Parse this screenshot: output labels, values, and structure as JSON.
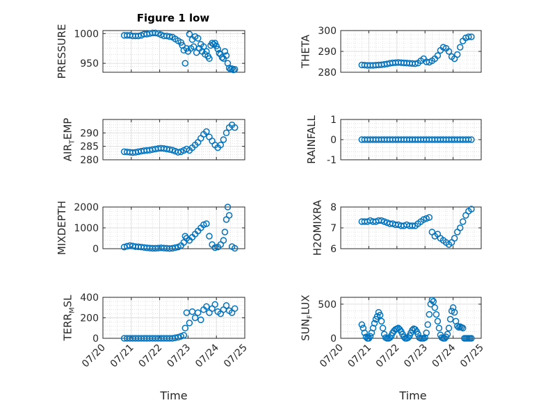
{
  "figure": {
    "title": "Figure 1 low",
    "xlabel": "Time",
    "date_ticks": [
      "07/20",
      "07/21",
      "07/22",
      "07/23",
      "07/24",
      "07/25"
    ]
  },
  "colors": {
    "marker": "#0072BD",
    "axis": "#262626",
    "grid": "#c8c8c8"
  },
  "chart_data": [
    {
      "type": "scatter",
      "ylabel": "PRESSURE",
      "title": "Figure 1 low",
      "xlim": [
        "07/20",
        "07/25"
      ],
      "ylim": [
        935,
        1005
      ],
      "yticks": [
        950,
        1000
      ],
      "grid": true,
      "minor_grid": true,
      "series": [
        {
          "x": [
            20.75,
            20.85,
            20.95,
            21.05,
            21.15,
            21.25,
            21.35,
            21.45,
            21.55,
            21.65,
            21.75,
            21.85,
            21.95,
            22.05,
            22.15,
            22.25,
            22.35,
            22.45,
            22.55,
            22.65,
            22.75,
            22.8,
            22.85,
            22.9,
            22.95,
            23.0,
            23.05,
            23.1,
            23.15,
            23.2,
            23.25,
            23.3,
            23.35,
            23.4,
            23.45,
            23.5,
            23.55,
            23.6,
            23.65,
            23.7,
            23.75,
            23.8,
            23.85,
            23.9,
            23.95,
            24.0,
            24.05,
            24.1,
            24.15,
            24.2,
            24.25,
            24.3,
            24.35,
            24.4,
            24.45,
            24.5,
            24.55,
            24.6,
            24.65
          ],
          "y": [
            997,
            997,
            997,
            996,
            996,
            996,
            997,
            999,
            999,
            1000,
            1001,
            1001,
            1000,
            998,
            996,
            996,
            995,
            994,
            991,
            988,
            985,
            980,
            972,
            950,
            975,
            970,
            999,
            975,
            990,
            978,
            995,
            968,
            992,
            975,
            982,
            970,
            978,
            965,
            970,
            962,
            958,
            980,
            984,
            982,
            984,
            979,
            974,
            967,
            965,
            960,
            958,
            970,
            963,
            950,
            942,
            940,
            941,
            939,
            940
          ]
        }
      ]
    },
    {
      "type": "scatter",
      "ylabel": "THETA",
      "xlim": [
        "07/20",
        "07/25"
      ],
      "ylim": [
        280,
        300
      ],
      "yticks": [
        280,
        290,
        300
      ],
      "grid": true,
      "minor_grid": true,
      "series": [
        {
          "x": [
            20.75,
            20.85,
            20.95,
            21.05,
            21.15,
            21.25,
            21.35,
            21.45,
            21.55,
            21.65,
            21.75,
            21.85,
            21.95,
            22.05,
            22.15,
            22.25,
            22.35,
            22.45,
            22.55,
            22.65,
            22.75,
            22.85,
            22.95,
            23.05,
            23.15,
            23.25,
            23.35,
            23.45,
            23.55,
            23.65,
            23.75,
            23.85,
            23.95,
            24.05,
            24.15,
            24.25,
            24.35,
            24.45,
            24.55,
            24.65
          ],
          "y": [
            283.5,
            283.4,
            283.3,
            283.3,
            283.3,
            283.4,
            283.5,
            283.6,
            283.8,
            284.0,
            284.3,
            284.5,
            284.6,
            284.7,
            284.6,
            284.5,
            284.4,
            284.3,
            284.2,
            284.1,
            284.4,
            285.5,
            286.5,
            285.0,
            284.8,
            285.5,
            286.5,
            288.0,
            290.5,
            292.0,
            291.5,
            290.0,
            287.5,
            286.5,
            288.5,
            292.0,
            295.0,
            296.5,
            297.0,
            297.0
          ]
        }
      ]
    },
    {
      "type": "scatter",
      "ylabel": "AIR_TEMP",
      "xlim": [
        "07/20",
        "07/25"
      ],
      "ylim": [
        280,
        295
      ],
      "yticks": [
        280,
        285,
        290
      ],
      "grid": true,
      "minor_grid": true,
      "series": [
        {
          "x": [
            20.75,
            20.85,
            20.95,
            21.05,
            21.15,
            21.25,
            21.35,
            21.45,
            21.55,
            21.65,
            21.75,
            21.85,
            21.95,
            22.05,
            22.15,
            22.25,
            22.35,
            22.45,
            22.55,
            22.65,
            22.75,
            22.85,
            22.95,
            23.05,
            23.15,
            23.25,
            23.35,
            23.45,
            23.55,
            23.65,
            23.75,
            23.85,
            23.95,
            24.05,
            24.15,
            24.25,
            24.35,
            24.45,
            24.55,
            24.65
          ],
          "y": [
            283.0,
            282.9,
            282.8,
            282.7,
            282.8,
            283.0,
            283.2,
            283.4,
            283.5,
            283.6,
            283.8,
            284.0,
            284.2,
            284.3,
            284.2,
            284.0,
            283.8,
            283.6,
            283.2,
            282.8,
            283.0,
            283.5,
            284.0,
            283.5,
            284.5,
            285.5,
            286.5,
            288.0,
            289.5,
            290.5,
            288.5,
            287.0,
            285.5,
            284.5,
            285.5,
            287.5,
            290.0,
            292.0,
            293.0,
            292.0
          ]
        }
      ]
    },
    {
      "type": "scatter",
      "ylabel": "RAINFALL",
      "xlim": [
        "07/20",
        "07/25"
      ],
      "ylim": [
        -1,
        1
      ],
      "yticks": [
        -1,
        0,
        1
      ],
      "grid": true,
      "minor_grid": true,
      "series": [
        {
          "x": [
            20.75,
            20.85,
            20.95,
            21.05,
            21.15,
            21.25,
            21.35,
            21.45,
            21.55,
            21.65,
            21.75,
            21.85,
            21.95,
            22.05,
            22.15,
            22.25,
            22.35,
            22.45,
            22.55,
            22.65,
            22.75,
            22.85,
            22.95,
            23.05,
            23.15,
            23.25,
            23.35,
            23.45,
            23.55,
            23.65,
            23.75,
            23.85,
            23.95,
            24.05,
            24.15,
            24.25,
            24.35,
            24.45,
            24.55,
            24.65
          ],
          "y": [
            0,
            0,
            0,
            0,
            0,
            0,
            0,
            0,
            0,
            0,
            0,
            0,
            0,
            0,
            0,
            0,
            0,
            0,
            0,
            0,
            0,
            0,
            0,
            0,
            0,
            0,
            0,
            0,
            0,
            0,
            0,
            0,
            0,
            0,
            0,
            0,
            0,
            0,
            0,
            0
          ]
        }
      ]
    },
    {
      "type": "scatter",
      "ylabel": "MIXDEPTH",
      "xlim": [
        "07/20",
        "07/25"
      ],
      "ylim": [
        0,
        2000
      ],
      "yticks": [
        0,
        1000,
        2000
      ],
      "grid": true,
      "minor_grid": true,
      "series": [
        {
          "x": [
            20.75,
            20.85,
            20.95,
            21.05,
            21.15,
            21.25,
            21.35,
            21.45,
            21.55,
            21.65,
            21.75,
            21.85,
            21.95,
            22.05,
            22.15,
            22.25,
            22.35,
            22.45,
            22.55,
            22.65,
            22.75,
            22.85,
            22.9,
            22.95,
            23.05,
            23.15,
            23.25,
            23.35,
            23.45,
            23.55,
            23.65,
            23.75,
            23.85,
            23.95,
            24.05,
            24.15,
            24.25,
            24.3,
            24.35,
            24.4,
            24.45,
            24.55,
            24.65
          ],
          "y": [
            80,
            120,
            150,
            130,
            100,
            90,
            80,
            60,
            40,
            30,
            20,
            20,
            30,
            40,
            30,
            20,
            10,
            20,
            50,
            80,
            150,
            300,
            600,
            500,
            400,
            550,
            700,
            850,
            1000,
            1150,
            1200,
            600,
            200,
            50,
            80,
            200,
            400,
            800,
            1400,
            2000,
            1600,
            100,
            20
          ]
        }
      ]
    },
    {
      "type": "scatter",
      "ylabel": "H2OMIXRA",
      "xlim": [
        "07/20",
        "07/25"
      ],
      "ylim": [
        6,
        8
      ],
      "yticks": [
        6,
        7,
        8
      ],
      "grid": true,
      "minor_grid": true,
      "series": [
        {
          "x": [
            20.75,
            20.85,
            20.95,
            21.05,
            21.15,
            21.25,
            21.35,
            21.45,
            21.55,
            21.65,
            21.75,
            21.85,
            21.95,
            22.05,
            22.15,
            22.25,
            22.35,
            22.45,
            22.55,
            22.65,
            22.75,
            22.85,
            22.95,
            23.05,
            23.15,
            23.25,
            23.35,
            23.45,
            23.55,
            23.65,
            23.75,
            23.85,
            23.95,
            24.05,
            24.15,
            24.25,
            24.35,
            24.45,
            24.55,
            24.65
          ],
          "y": [
            7.3,
            7.3,
            7.3,
            7.35,
            7.3,
            7.3,
            7.35,
            7.35,
            7.3,
            7.25,
            7.2,
            7.2,
            7.15,
            7.15,
            7.1,
            7.1,
            7.15,
            7.1,
            7.1,
            7.1,
            7.2,
            7.3,
            7.4,
            7.45,
            7.5,
            6.8,
            6.6,
            6.7,
            6.5,
            6.4,
            6.3,
            6.2,
            6.3,
            6.5,
            6.8,
            7.0,
            7.3,
            7.6,
            7.8,
            7.9
          ]
        }
      ]
    },
    {
      "type": "scatter",
      "ylabel": "TERR_MSL",
      "xlim": [
        "07/20",
        "07/25"
      ],
      "ylim": [
        0,
        400
      ],
      "yticks": [
        0,
        200,
        400
      ],
      "grid": true,
      "minor_grid": true,
      "series": [
        {
          "x": [
            20.75,
            20.85,
            20.95,
            21.05,
            21.15,
            21.25,
            21.35,
            21.45,
            21.55,
            21.65,
            21.75,
            21.85,
            21.95,
            22.05,
            22.15,
            22.25,
            22.35,
            22.45,
            22.55,
            22.65,
            22.75,
            22.85,
            22.9,
            22.95,
            23.05,
            23.15,
            23.25,
            23.35,
            23.45,
            23.55,
            23.65,
            23.75,
            23.85,
            23.95,
            24.05,
            24.15,
            24.25,
            24.35,
            24.45,
            24.55,
            24.65
          ],
          "y": [
            0,
            0,
            0,
            0,
            0,
            0,
            0,
            0,
            0,
            0,
            0,
            0,
            0,
            0,
            0,
            0,
            0,
            0,
            5,
            10,
            20,
            30,
            100,
            250,
            150,
            260,
            200,
            250,
            180,
            280,
            310,
            250,
            290,
            330,
            260,
            240,
            280,
            320,
            270,
            250,
            290
          ]
        }
      ]
    },
    {
      "type": "scatter",
      "ylabel": "SUN_FLUX",
      "xlim": [
        "07/20",
        "07/25"
      ],
      "ylim": [
        0,
        600
      ],
      "yticks": [
        0,
        500
      ],
      "grid": true,
      "minor_grid": true,
      "series": [
        {
          "x": [
            20.75,
            20.8,
            20.85,
            20.9,
            20.95,
            21.0,
            21.05,
            21.1,
            21.15,
            21.2,
            21.25,
            21.3,
            21.35,
            21.4,
            21.45,
            21.5,
            21.55,
            21.6,
            21.65,
            21.7,
            21.75,
            21.8,
            21.85,
            21.9,
            21.95,
            22.0,
            22.05,
            22.1,
            22.15,
            22.2,
            22.25,
            22.3,
            22.35,
            22.4,
            22.45,
            22.5,
            22.55,
            22.6,
            22.65,
            22.7,
            22.75,
            22.8,
            22.85,
            22.9,
            22.95,
            23.0,
            23.05,
            23.1,
            23.15,
            23.2,
            23.25,
            23.3,
            23.35,
            23.4,
            23.45,
            23.5,
            23.55,
            23.6,
            23.65,
            23.7,
            23.75,
            23.8,
            23.85,
            23.9,
            23.95,
            24.0,
            24.05,
            24.1,
            24.15,
            24.2,
            24.25,
            24.3,
            24.35,
            24.4,
            24.45,
            24.5,
            24.55,
            24.6,
            24.65
          ],
          "y": [
            200,
            150,
            80,
            20,
            0,
            0,
            30,
            80,
            150,
            220,
            280,
            320,
            380,
            340,
            250,
            150,
            60,
            10,
            0,
            0,
            10,
            40,
            80,
            110,
            130,
            140,
            150,
            130,
            100,
            60,
            20,
            0,
            0,
            10,
            40,
            80,
            120,
            140,
            130,
            100,
            60,
            10,
            0,
            0,
            0,
            10,
            80,
            200,
            350,
            500,
            560,
            540,
            450,
            350,
            250,
            150,
            50,
            10,
            0,
            0,
            20,
            60,
            150,
            280,
            400,
            450,
            380,
            250,
            180,
            160,
            170,
            160,
            150,
            0,
            0,
            0,
            0,
            0,
            0
          ]
        }
      ]
    }
  ]
}
